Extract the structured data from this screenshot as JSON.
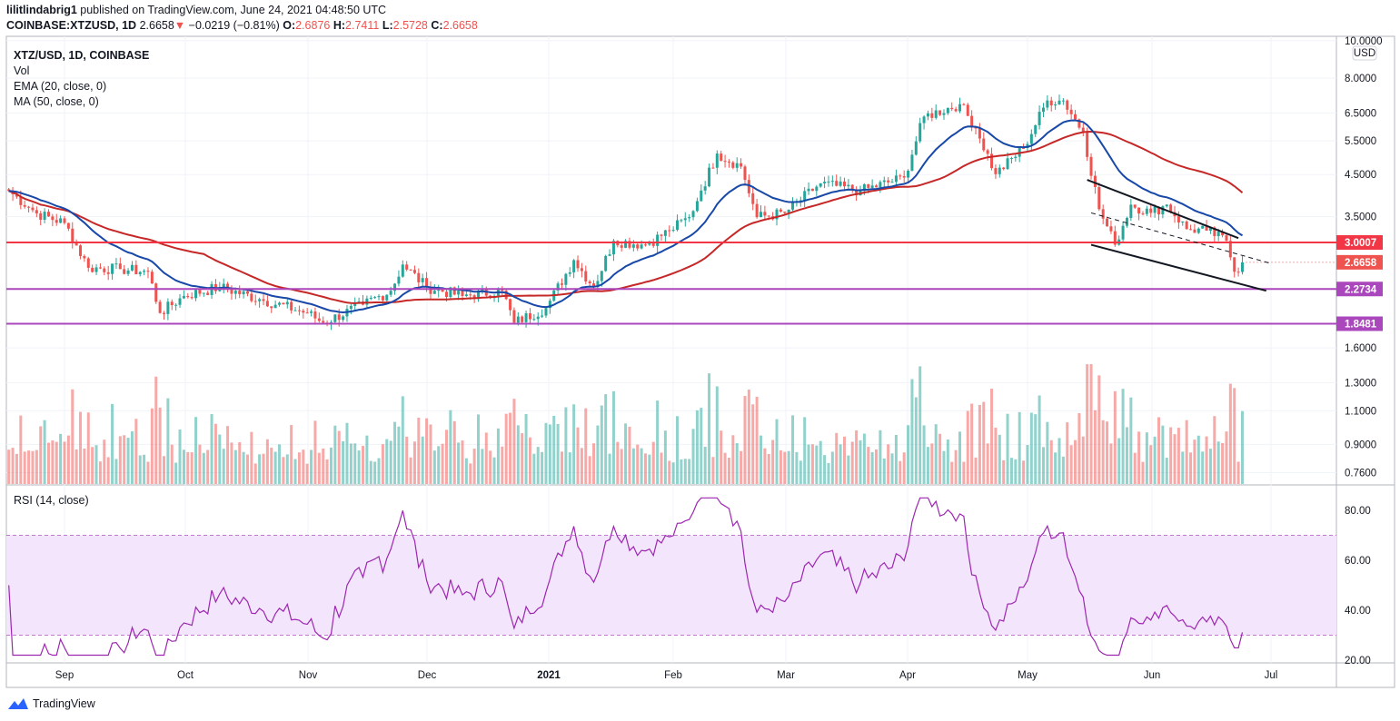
{
  "header": {
    "author": "lilitlindabrig1",
    "published": "published on TradingView.com, June 24, 2021 04:48:50 UTC",
    "symbol": "COINBASE:XTZUSD, 1D",
    "last": "2.6658",
    "change": "−0.0219 (−0.81%)",
    "o_label": "O:",
    "o": "2.6876",
    "h_label": "H:",
    "h": "2.7411",
    "l_label": "L:",
    "l": "2.5728",
    "c_label": "C:",
    "c": "2.6658"
  },
  "legend": {
    "title": "XTZ/USD, 1D, COINBASE",
    "vol": "Vol",
    "ema": "EMA (20, close, 0)",
    "ma": "MA (50, close, 0)",
    "rsi": "RSI (14, close)"
  },
  "footer": {
    "brand": "TradingView"
  },
  "colors": {
    "up": "#26a69a",
    "down": "#ef5350",
    "ema": "#1848a8",
    "ma": "#c62828",
    "resistance": "#f23645",
    "support": "#ab47bc",
    "rsi": "#9c27b0",
    "rsi_band": "#f3e5fc"
  },
  "chart_data": {
    "type": "candlestick",
    "price_scale": "log",
    "currency_label": "USD",
    "price_ticks": [
      "10.0000",
      "8.0000",
      "6.5000",
      "5.5000",
      "4.5000",
      "3.5000",
      "1.6000",
      "1.3000",
      "1.1000",
      "0.9000",
      "0.7600"
    ],
    "x_ticks": [
      "Sep",
      "Oct",
      "Nov",
      "Dec",
      "2021",
      "Feb",
      "Mar",
      "Apr",
      "May",
      "Jun",
      "Jul"
    ],
    "rsi_ticks": [
      "80.00",
      "60.00",
      "40.00",
      "20.00"
    ],
    "rsi_band": [
      30,
      70
    ],
    "levels": [
      {
        "value": "3.0007",
        "color": "#f23645"
      },
      {
        "value": "2.6658",
        "color": "#ef5350",
        "style": "dotted"
      },
      {
        "value": "2.2734",
        "color": "#ab47bc"
      },
      {
        "value": "1.8481",
        "color": "#ab47bc"
      }
    ],
    "trendlines": [
      {
        "from": [
          "2021-05-16",
          4.36
        ],
        "to": [
          "2021-06-23",
          3.08
        ],
        "style": "solid"
      },
      {
        "from": [
          "2021-05-17",
          2.96
        ],
        "to": [
          "2021-06-30",
          2.25
        ],
        "style": "solid"
      },
      {
        "from": [
          "2021-05-17",
          3.58
        ],
        "to": [
          "2021-07-01",
          2.65
        ],
        "style": "dashed"
      }
    ],
    "closes": [
      [
        "2020-08-18",
        4.08
      ],
      [
        "2020-08-25",
        3.57
      ],
      [
        "2020-09-01",
        3.37
      ],
      [
        "2020-09-07",
        2.58
      ],
      [
        "2020-09-15",
        2.56
      ],
      [
        "2020-09-22",
        2.52
      ],
      [
        "2020-09-25",
        1.97
      ],
      [
        "2020-10-01",
        2.18
      ],
      [
        "2020-10-10",
        2.3
      ],
      [
        "2020-10-20",
        2.14
      ],
      [
        "2020-11-01",
        1.97
      ],
      [
        "2020-11-05",
        1.86
      ],
      [
        "2020-11-15",
        2.07
      ],
      [
        "2020-11-22",
        2.25
      ],
      [
        "2020-11-25",
        2.63
      ],
      [
        "2020-12-01",
        2.3
      ],
      [
        "2020-12-10",
        2.18
      ],
      [
        "2020-12-20",
        2.25
      ],
      [
        "2020-12-23",
        1.86
      ],
      [
        "2020-12-31",
        2.03
      ],
      [
        "2021-01-07",
        2.7
      ],
      [
        "2021-01-12",
        2.3
      ],
      [
        "2021-01-17",
        3.03
      ],
      [
        "2021-01-25",
        2.96
      ],
      [
        "2021-01-31",
        3.22
      ],
      [
        "2021-02-05",
        3.49
      ],
      [
        "2021-02-08",
        4.09
      ],
      [
        "2021-02-12",
        5.1
      ],
      [
        "2021-02-18",
        4.72
      ],
      [
        "2021-02-22",
        3.49
      ],
      [
        "2021-03-01",
        3.58
      ],
      [
        "2021-03-10",
        4.27
      ],
      [
        "2021-03-20",
        4.08
      ],
      [
        "2021-03-31",
        4.42
      ],
      [
        "2021-04-05",
        6.36
      ],
      [
        "2021-04-14",
        6.85
      ],
      [
        "2021-04-18",
        5.94
      ],
      [
        "2021-04-23",
        4.51
      ],
      [
        "2021-04-30",
        5.27
      ],
      [
        "2021-05-06",
        7.0
      ],
      [
        "2021-05-10",
        7.0
      ],
      [
        "2021-05-15",
        5.8
      ],
      [
        "2021-05-19",
        3.66
      ],
      [
        "2021-05-23",
        2.96
      ],
      [
        "2021-05-27",
        3.76
      ],
      [
        "2021-06-01",
        3.58
      ],
      [
        "2021-06-05",
        3.76
      ],
      [
        "2021-06-10",
        3.25
      ],
      [
        "2021-06-15",
        3.22
      ],
      [
        "2021-06-20",
        3.03
      ],
      [
        "2021-06-22",
        2.52
      ],
      [
        "2021-06-24",
        2.6658
      ]
    ]
  }
}
